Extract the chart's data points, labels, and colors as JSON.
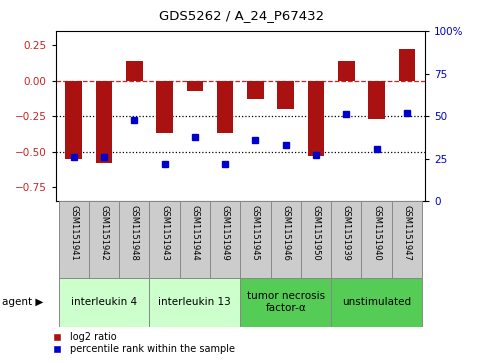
{
  "title": "GDS5262 / A_24_P67432",
  "samples": [
    "GSM1151941",
    "GSM1151942",
    "GSM1151948",
    "GSM1151943",
    "GSM1151944",
    "GSM1151949",
    "GSM1151945",
    "GSM1151946",
    "GSM1151950",
    "GSM1151939",
    "GSM1151940",
    "GSM1151947"
  ],
  "log2_ratio": [
    -0.55,
    -0.58,
    0.14,
    -0.37,
    -0.07,
    -0.37,
    -0.13,
    -0.2,
    -0.53,
    0.14,
    -0.27,
    0.22
  ],
  "percentile": [
    26,
    26,
    48,
    22,
    38,
    22,
    36,
    33,
    27,
    51,
    31,
    52
  ],
  "agent_groups": [
    {
      "label": "interleukin 4",
      "start": 0,
      "end": 3,
      "color": "#ccffcc"
    },
    {
      "label": "interleukin 13",
      "start": 3,
      "end": 6,
      "color": "#ccffcc"
    },
    {
      "label": "tumor necrosis\nfactor-α",
      "start": 6,
      "end": 9,
      "color": "#55cc55"
    },
    {
      "label": "unstimulated",
      "start": 9,
      "end": 12,
      "color": "#55cc55"
    }
  ],
  "bar_color": "#aa1111",
  "dot_color": "#0000cc",
  "ylim_left": [
    -0.85,
    0.35
  ],
  "ylim_right": [
    0,
    100
  ],
  "yticks_left": [
    -0.75,
    -0.5,
    -0.25,
    0,
    0.25
  ],
  "yticks_right": [
    0,
    25,
    50,
    75,
    100
  ],
  "background_color": "#ffffff",
  "plot_bg": "#ffffff",
  "label_box_color": "#cccccc",
  "label_box_edge": "#888888"
}
